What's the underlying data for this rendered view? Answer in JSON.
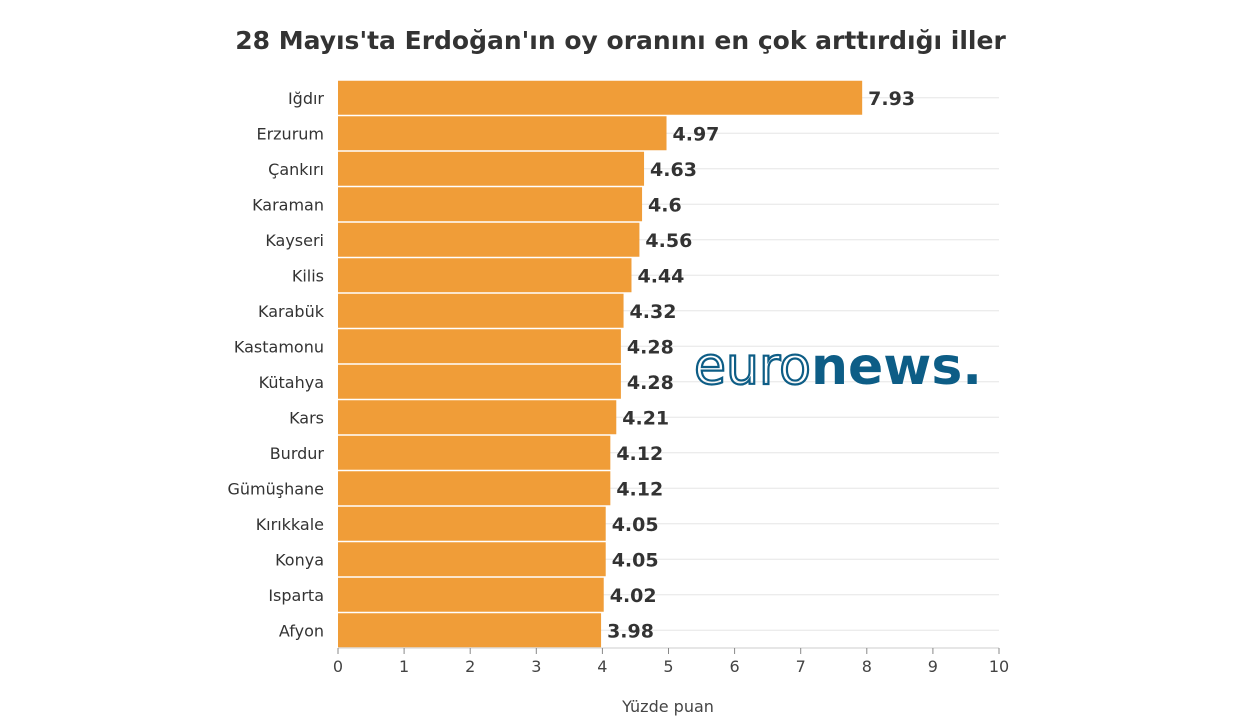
{
  "chart_data": {
    "type": "bar",
    "orientation": "horizontal",
    "title": "28 Mayıs'ta Erdoğan'ın oy oranını en çok arttırdığı iller",
    "xlabel": "Yüzde puan",
    "ylabel": "",
    "categories": [
      "Iğdır",
      "Erzurum",
      "Çankırı",
      "Karaman",
      "Kayseri",
      "Kilis",
      "Karabük",
      "Kastamonu",
      "Kütahya",
      "Kars",
      "Burdur",
      "Gümüşhane",
      "Kırıkkale",
      "Konya",
      "Isparta",
      "Afyon"
    ],
    "values": [
      7.93,
      4.97,
      4.63,
      4.6,
      4.56,
      4.44,
      4.32,
      4.28,
      4.28,
      4.21,
      4.12,
      4.12,
      4.05,
      4.05,
      4.02,
      3.98
    ],
    "value_labels": [
      "7.93",
      "4.97",
      "4.63",
      "4.6",
      "4.56",
      "4.44",
      "4.32",
      "4.28",
      "4.28",
      "4.21",
      "4.12",
      "4.12",
      "4.05",
      "4.05",
      "4.02",
      "3.98"
    ],
    "xlim": [
      0,
      10
    ],
    "xticks": [
      "0",
      "1",
      "2",
      "3",
      "4",
      "5",
      "6",
      "7",
      "8",
      "9",
      "10"
    ],
    "grid": true,
    "colors": {
      "bar": "#f09d38",
      "grid": "#e6e6e6",
      "text": "#333333"
    }
  },
  "watermark": {
    "part1": "euro",
    "part2": "news",
    "dot": ".",
    "color": "#0d5d86"
  }
}
